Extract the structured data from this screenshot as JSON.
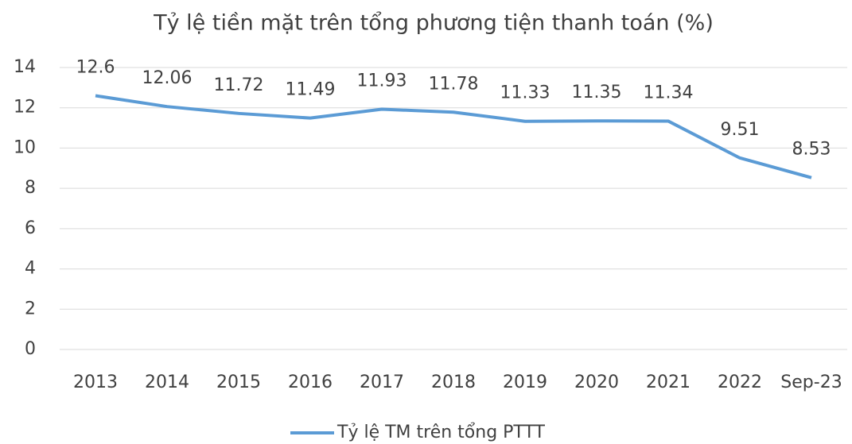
{
  "chart_data": {
    "type": "line",
    "title": "Tỷ lệ tiền mặt trên tổng phương tiện thanh toán (%)",
    "categories": [
      "2013",
      "2014",
      "2015",
      "2016",
      "2017",
      "2018",
      "2019",
      "2020",
      "2021",
      "2022",
      "Sep-23"
    ],
    "series": [
      {
        "name": "Tỷ lệ TM trên tổng PTTT",
        "color": "#5b9bd5",
        "values": [
          12.6,
          12.06,
          11.72,
          11.49,
          11.93,
          11.78,
          11.33,
          11.35,
          11.34,
          9.51,
          8.53
        ]
      }
    ],
    "ylim": [
      0,
      14
    ],
    "yticks": [
      0,
      2,
      4,
      6,
      8,
      10,
      12,
      14
    ],
    "grid": true,
    "legend": "bottom"
  }
}
